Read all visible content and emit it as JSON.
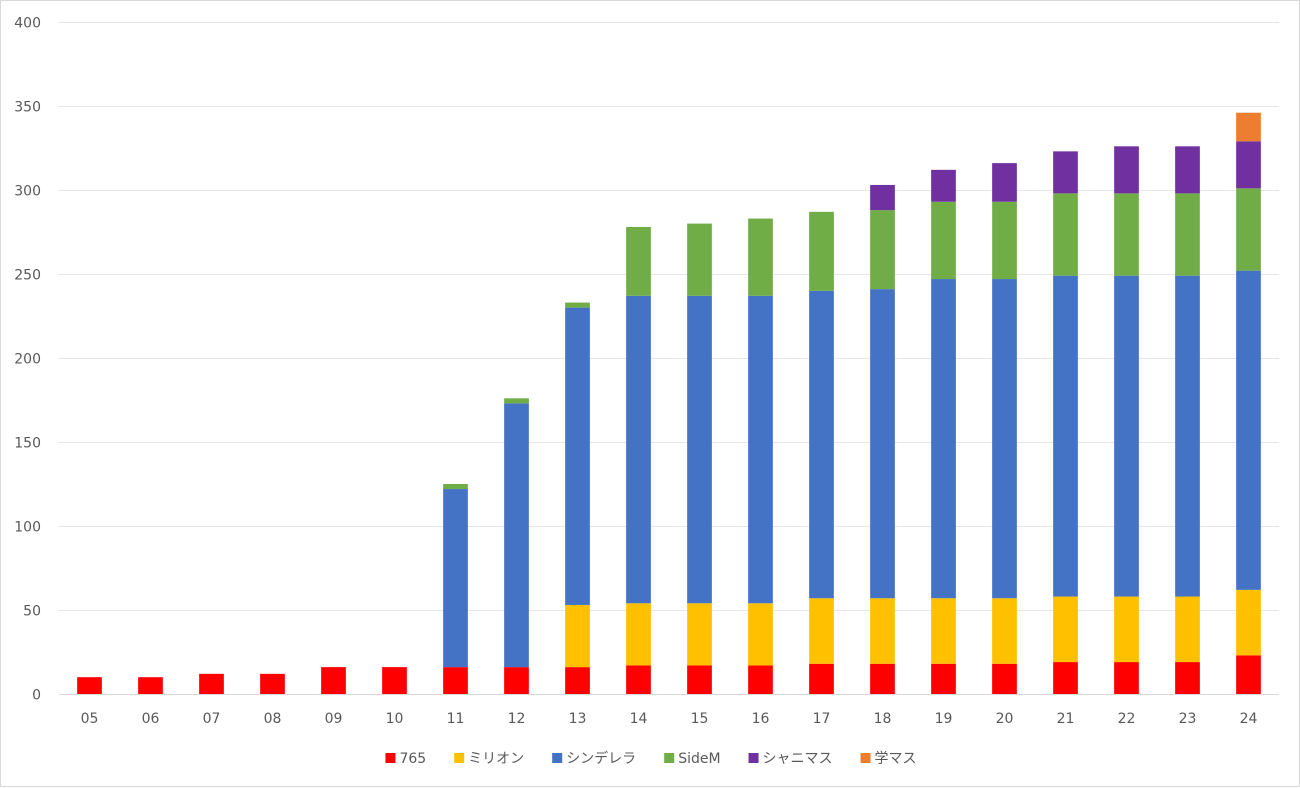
{
  "chart_data": {
    "type": "bar",
    "stacked": true,
    "title": "",
    "xlabel": "",
    "ylabel": "",
    "ylim": [
      0,
      400
    ],
    "yticks": [
      0,
      50,
      100,
      150,
      200,
      250,
      300,
      350,
      400
    ],
    "grid": true,
    "legend_position": "bottom",
    "categories": [
      "05",
      "06",
      "07",
      "08",
      "09",
      "10",
      "11",
      "12",
      "13",
      "14",
      "15",
      "16",
      "17",
      "18",
      "19",
      "20",
      "21",
      "22",
      "23",
      "24"
    ],
    "series": [
      {
        "name": "765",
        "color": "#ff0000",
        "values": [
          10,
          10,
          12,
          12,
          16,
          16,
          16,
          16,
          16,
          17,
          17,
          17,
          18,
          18,
          18,
          18,
          19,
          19,
          19,
          23
        ]
      },
      {
        "name": "ミリオン",
        "color": "#ffc000",
        "values": [
          0,
          0,
          0,
          0,
          0,
          0,
          0,
          0,
          37,
          37,
          37,
          37,
          39,
          39,
          39,
          39,
          39,
          39,
          39,
          39
        ]
      },
      {
        "name": "シンデレラ",
        "color": "#4472c4",
        "values": [
          0,
          0,
          0,
          0,
          0,
          0,
          106,
          157,
          177,
          183,
          183,
          183,
          183,
          184,
          190,
          190,
          191,
          191,
          191,
          190
        ]
      },
      {
        "name": "SideM",
        "color": "#70ad47",
        "values": [
          0,
          0,
          0,
          0,
          0,
          0,
          3,
          3,
          3,
          41,
          43,
          46,
          47,
          47,
          46,
          46,
          49,
          49,
          49,
          49
        ]
      },
      {
        "name": "シャニマス",
        "color": "#7030a0",
        "values": [
          0,
          0,
          0,
          0,
          0,
          0,
          0,
          0,
          0,
          0,
          0,
          0,
          0,
          15,
          19,
          23,
          25,
          28,
          28,
          28
        ]
      },
      {
        "name": "学マス",
        "color": "#ed7d31",
        "values": [
          0,
          0,
          0,
          0,
          0,
          0,
          0,
          0,
          0,
          0,
          0,
          0,
          0,
          0,
          0,
          0,
          0,
          0,
          0,
          17
        ]
      }
    ]
  }
}
